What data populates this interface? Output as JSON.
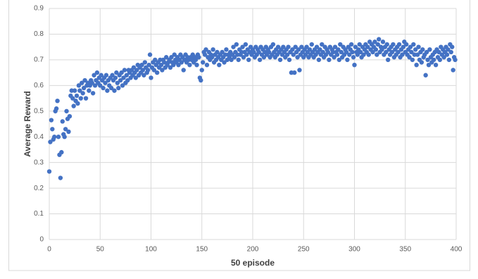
{
  "chart_data": {
    "type": "scatter",
    "y_label": "Average Reward",
    "x_label": "50 episode",
    "color": "#4472c4",
    "grid": true,
    "xlim": [
      0,
      400
    ],
    "ylim": [
      0,
      0.9
    ],
    "xticks": [
      0,
      50,
      100,
      150,
      200,
      250,
      300,
      350,
      400
    ],
    "yticks": [
      0,
      0.1,
      0.2,
      0.3,
      0.4,
      0.5,
      0.6,
      0.7,
      0.8,
      0.9
    ],
    "x": [
      0,
      1,
      2,
      3,
      4,
      5,
      6,
      7,
      8,
      9,
      10,
      11,
      12,
      13,
      14,
      15,
      16,
      17,
      18,
      19,
      20,
      21,
      22,
      23,
      24,
      25,
      26,
      27,
      28,
      29,
      30,
      31,
      32,
      33,
      34,
      35,
      36,
      37,
      38,
      39,
      40,
      41,
      42,
      43,
      44,
      45,
      46,
      47,
      48,
      49,
      50,
      51,
      52,
      53,
      54,
      55,
      56,
      57,
      58,
      59,
      60,
      61,
      62,
      63,
      64,
      65,
      66,
      67,
      68,
      69,
      70,
      71,
      72,
      73,
      74,
      75,
      76,
      77,
      78,
      79,
      80,
      81,
      82,
      83,
      84,
      85,
      86,
      87,
      88,
      89,
      90,
      91,
      92,
      93,
      94,
      95,
      96,
      97,
      98,
      99,
      100,
      101,
      102,
      103,
      104,
      105,
      106,
      107,
      108,
      109,
      110,
      111,
      112,
      113,
      114,
      115,
      116,
      117,
      118,
      119,
      120,
      121,
      122,
      123,
      124,
      125,
      126,
      127,
      128,
      129,
      130,
      131,
      132,
      133,
      134,
      135,
      136,
      137,
      138,
      139,
      140,
      141,
      142,
      143,
      144,
      145,
      146,
      147,
      148,
      149,
      150,
      151,
      152,
      153,
      154,
      155,
      156,
      157,
      158,
      159,
      160,
      161,
      162,
      163,
      164,
      165,
      166,
      167,
      168,
      169,
      170,
      171,
      172,
      173,
      174,
      175,
      176,
      177,
      178,
      179,
      180,
      181,
      182,
      183,
      184,
      185,
      186,
      187,
      188,
      189,
      190,
      191,
      192,
      193,
      194,
      195,
      196,
      197,
      198,
      199,
      200,
      201,
      202,
      203,
      204,
      205,
      206,
      207,
      208,
      209,
      210,
      211,
      212,
      213,
      214,
      215,
      216,
      217,
      218,
      219,
      220,
      221,
      222,
      223,
      224,
      225,
      226,
      227,
      228,
      229,
      230,
      231,
      232,
      233,
      234,
      235,
      236,
      237,
      238,
      239,
      240,
      241,
      242,
      243,
      244,
      245,
      246,
      247,
      248,
      249,
      250,
      251,
      252,
      253,
      254,
      255,
      256,
      257,
      258,
      259,
      260,
      261,
      262,
      263,
      264,
      265,
      266,
      267,
      268,
      269,
      270,
      271,
      272,
      273,
      274,
      275,
      276,
      277,
      278,
      279,
      280,
      281,
      282,
      283,
      284,
      285,
      286,
      287,
      288,
      289,
      290,
      291,
      292,
      293,
      294,
      295,
      296,
      297,
      298,
      299,
      300,
      301,
      302,
      303,
      304,
      305,
      306,
      307,
      308,
      309,
      310,
      311,
      312,
      313,
      314,
      315,
      316,
      317,
      318,
      319,
      320,
      321,
      322,
      323,
      324,
      325,
      326,
      327,
      328,
      329,
      330,
      331,
      332,
      333,
      334,
      335,
      336,
      337,
      338,
      339,
      340,
      341,
      342,
      343,
      344,
      345,
      346,
      347,
      348,
      349,
      350,
      351,
      352,
      353,
      354,
      355,
      356,
      357,
      358,
      359,
      360,
      361,
      362,
      363,
      364,
      365,
      366,
      367,
      368,
      369,
      370,
      371,
      372,
      373,
      374,
      375,
      376,
      377,
      378,
      379,
      380,
      381,
      382,
      383,
      384,
      385,
      386,
      387,
      388,
      389,
      390,
      391,
      392,
      393,
      394,
      395,
      396,
      397,
      398,
      399
    ],
    "values": [
      0.265,
      0.38,
      0.465,
      0.43,
      0.39,
      0.4,
      0.5,
      0.51,
      0.54,
      0.4,
      0.33,
      0.24,
      0.34,
      0.46,
      0.41,
      0.4,
      0.43,
      0.5,
      0.47,
      0.42,
      0.48,
      0.56,
      0.58,
      0.55,
      0.52,
      0.58,
      0.54,
      0.56,
      0.53,
      0.6,
      0.58,
      0.55,
      0.61,
      0.57,
      0.59,
      0.62,
      0.55,
      0.6,
      0.61,
      0.58,
      0.6,
      0.62,
      0.61,
      0.57,
      0.64,
      0.6,
      0.62,
      0.65,
      0.61,
      0.63,
      0.6,
      0.64,
      0.62,
      0.59,
      0.63,
      0.61,
      0.64,
      0.58,
      0.62,
      0.6,
      0.63,
      0.59,
      0.64,
      0.62,
      0.58,
      0.63,
      0.65,
      0.61,
      0.59,
      0.64,
      0.62,
      0.65,
      0.6,
      0.63,
      0.66,
      0.61,
      0.64,
      0.62,
      0.66,
      0.65,
      0.63,
      0.66,
      0.64,
      0.67,
      0.65,
      0.63,
      0.66,
      0.68,
      0.64,
      0.67,
      0.65,
      0.68,
      0.66,
      0.64,
      0.69,
      0.67,
      0.65,
      0.66,
      0.68,
      0.72,
      0.63,
      0.67,
      0.69,
      0.66,
      0.7,
      0.68,
      0.65,
      0.69,
      0.67,
      0.7,
      0.68,
      0.66,
      0.7,
      0.69,
      0.67,
      0.71,
      0.68,
      0.69,
      0.7,
      0.67,
      0.71,
      0.69,
      0.68,
      0.72,
      0.7,
      0.69,
      0.71,
      0.68,
      0.7,
      0.72,
      0.69,
      0.71,
      0.66,
      0.7,
      0.72,
      0.69,
      0.71,
      0.7,
      0.68,
      0.71,
      0.7,
      0.72,
      0.69,
      0.71,
      0.7,
      0.68,
      0.72,
      0.71,
      0.63,
      0.62,
      0.66,
      0.69,
      0.73,
      0.72,
      0.74,
      0.68,
      0.71,
      0.73,
      0.7,
      0.72,
      0.71,
      0.74,
      0.69,
      0.72,
      0.7,
      0.73,
      0.71,
      0.68,
      0.72,
      0.7,
      0.73,
      0.71,
      0.69,
      0.72,
      0.74,
      0.7,
      0.72,
      0.71,
      0.73,
      0.7,
      0.72,
      0.75,
      0.71,
      0.73,
      0.76,
      0.72,
      0.7,
      0.74,
      0.72,
      0.73,
      0.75,
      0.71,
      0.73,
      0.76,
      0.72,
      0.74,
      0.7,
      0.73,
      0.75,
      0.72,
      0.74,
      0.73,
      0.71,
      0.75,
      0.72,
      0.74,
      0.73,
      0.7,
      0.75,
      0.72,
      0.74,
      0.71,
      0.73,
      0.75,
      0.72,
      0.74,
      0.73,
      0.71,
      0.75,
      0.72,
      0.76,
      0.73,
      0.71,
      0.74,
      0.72,
      0.75,
      0.73,
      0.7,
      0.74,
      0.72,
      0.75,
      0.73,
      0.71,
      0.74,
      0.72,
      0.75,
      0.7,
      0.73,
      0.65,
      0.74,
      0.72,
      0.65,
      0.75,
      0.73,
      0.71,
      0.74,
      0.66,
      0.72,
      0.75,
      0.73,
      0.71,
      0.74,
      0.72,
      0.75,
      0.73,
      0.71,
      0.74,
      0.72,
      0.76,
      0.73,
      0.71,
      0.74,
      0.72,
      0.75,
      0.73,
      0.7,
      0.74,
      0.72,
      0.76,
      0.73,
      0.71,
      0.75,
      0.72,
      0.74,
      0.73,
      0.7,
      0.75,
      0.72,
      0.74,
      0.73,
      0.71,
      0.75,
      0.73,
      0.72,
      0.74,
      0.7,
      0.76,
      0.73,
      0.71,
      0.75,
      0.72,
      0.74,
      0.73,
      0.7,
      0.75,
      0.72,
      0.74,
      0.76,
      0.73,
      0.71,
      0.68,
      0.75,
      0.73,
      0.72,
      0.74,
      0.76,
      0.73,
      0.71,
      0.75,
      0.72,
      0.74,
      0.76,
      0.73,
      0.75,
      0.72,
      0.77,
      0.74,
      0.76,
      0.73,
      0.75,
      0.77,
      0.74,
      0.72,
      0.76,
      0.78,
      0.73,
      0.75,
      0.74,
      0.77,
      0.72,
      0.75,
      0.73,
      0.76,
      0.7,
      0.74,
      0.72,
      0.75,
      0.73,
      0.76,
      0.71,
      0.74,
      0.72,
      0.75,
      0.73,
      0.76,
      0.71,
      0.74,
      0.72,
      0.75,
      0.77,
      0.73,
      0.76,
      0.72,
      0.74,
      0.71,
      0.75,
      0.73,
      0.7,
      0.76,
      0.72,
      0.74,
      0.68,
      0.72,
      0.75,
      0.7,
      0.73,
      0.69,
      0.74,
      0.71,
      0.72,
      0.64,
      0.73,
      0.7,
      0.68,
      0.74,
      0.71,
      0.69,
      0.72,
      0.7,
      0.73,
      0.68,
      0.74,
      0.71,
      0.73,
      0.7,
      0.75,
      0.72,
      0.74,
      0.71,
      0.73,
      0.75,
      0.72,
      0.74,
      0.7,
      0.76,
      0.73,
      0.75,
      0.66,
      0.71,
      0.7
    ]
  }
}
